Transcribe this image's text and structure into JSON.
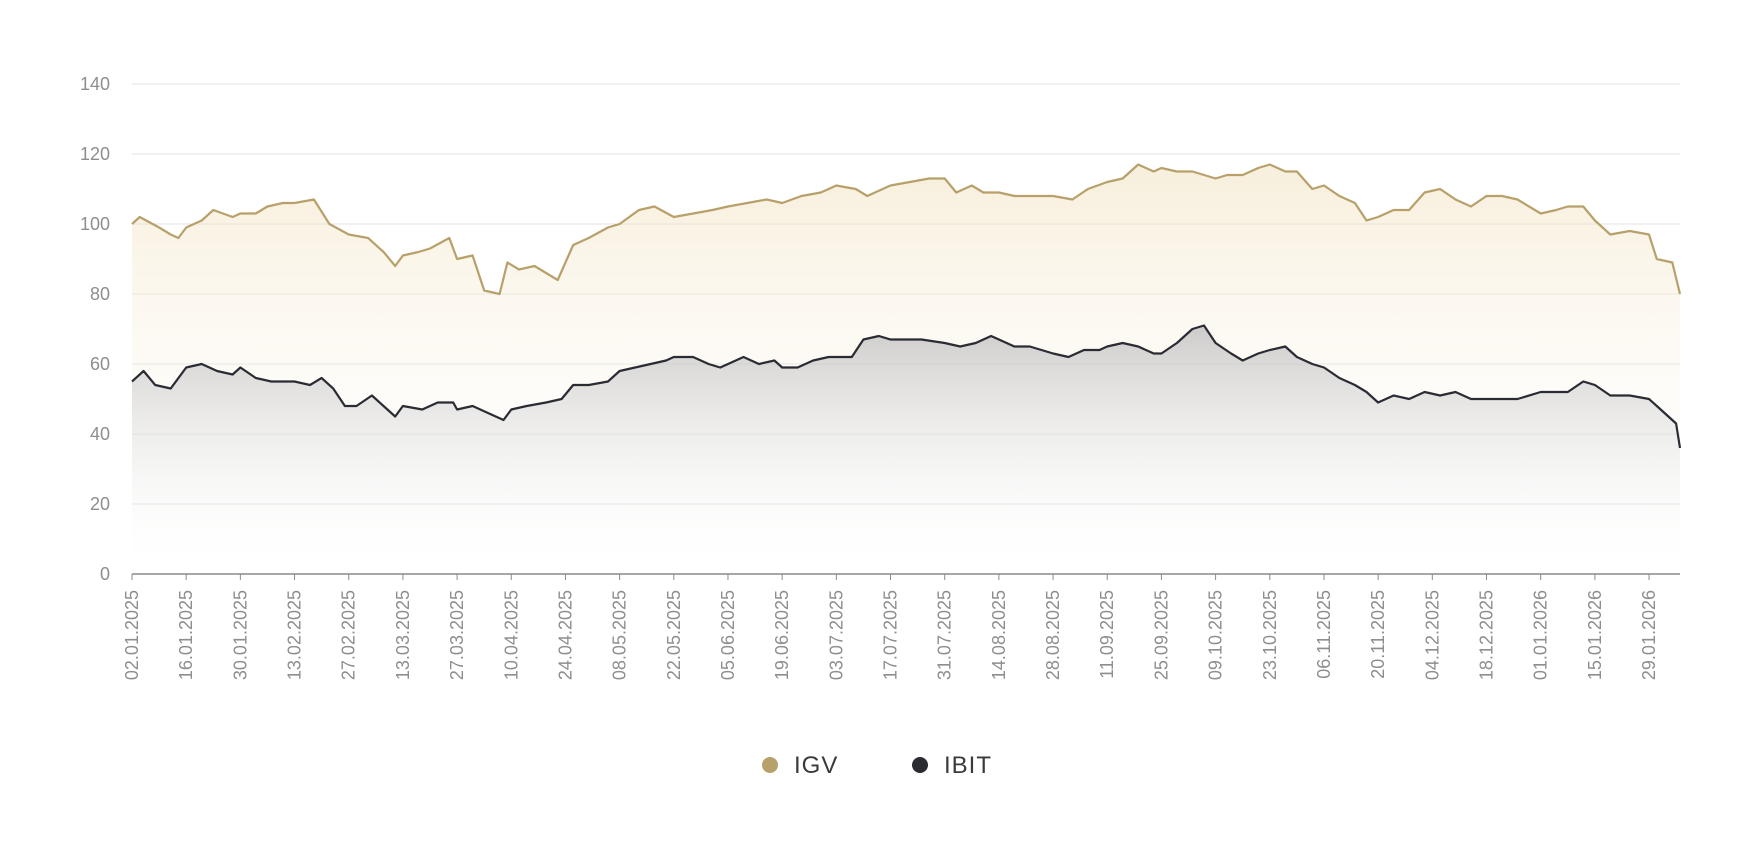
{
  "chart_data": {
    "type": "area",
    "title": "",
    "xlabel": "",
    "ylabel": "",
    "ylim": [
      0,
      140
    ],
    "yticks": [
      0,
      20,
      40,
      60,
      80,
      100,
      120,
      140
    ],
    "grid": "horizontal",
    "legend_position": "bottom-center",
    "x_tick_labels": [
      "02.01.2025",
      "16.01.2025",
      "30.01.2025",
      "13.02.2025",
      "27.02.2025",
      "13.03.2025",
      "27.03.2025",
      "10.04.2025",
      "24.04.2025",
      "08.05.2025",
      "22.05.2025",
      "05.06.2025",
      "19.06.2025",
      "03.07.2025",
      "17.07.2025",
      "31.07.2025",
      "14.08.2025",
      "28.08.2025",
      "11.09.2025",
      "25.09.2025",
      "09.10.2025",
      "23.10.2025",
      "06.11.2025",
      "20.11.2025",
      "04.12.2025",
      "18.12.2025",
      "01.01.2026",
      "15.01.2026",
      "29.01.2026"
    ],
    "x_start": "02.01.2025",
    "x_end": "06.02.2026",
    "series": [
      {
        "name": "IGV",
        "color": "#b8a06a",
        "points": [
          [
            "02.01.2025",
            100
          ],
          [
            "04.01.2025",
            102
          ],
          [
            "09.01.2025",
            99
          ],
          [
            "12.01.2025",
            97
          ],
          [
            "14.01.2025",
            96
          ],
          [
            "16.01.2025",
            99
          ],
          [
            "20.01.2025",
            101
          ],
          [
            "23.01.2025",
            104
          ],
          [
            "28.01.2025",
            102
          ],
          [
            "30.01.2025",
            103
          ],
          [
            "03.02.2025",
            103
          ],
          [
            "06.02.2025",
            105
          ],
          [
            "10.02.2025",
            106
          ],
          [
            "13.02.2025",
            106
          ],
          [
            "18.02.2025",
            107
          ],
          [
            "22.02.2025",
            100
          ],
          [
            "27.02.2025",
            97
          ],
          [
            "04.03.2025",
            96
          ],
          [
            "08.03.2025",
            92
          ],
          [
            "11.03.2025",
            88
          ],
          [
            "13.03.2025",
            91
          ],
          [
            "17.03.2025",
            92
          ],
          [
            "20.03.2025",
            93
          ],
          [
            "25.03.2025",
            96
          ],
          [
            "27.03.2025",
            90
          ],
          [
            "31.03.2025",
            91
          ],
          [
            "03.04.2025",
            81
          ],
          [
            "07.04.2025",
            80
          ],
          [
            "09.04.2025",
            89
          ],
          [
            "12.04.2025",
            87
          ],
          [
            "16.04.2025",
            88
          ],
          [
            "22.04.2025",
            84
          ],
          [
            "26.04.2025",
            94
          ],
          [
            "30.04.2025",
            96
          ],
          [
            "05.05.2025",
            99
          ],
          [
            "08.05.2025",
            100
          ],
          [
            "13.05.2025",
            104
          ],
          [
            "17.05.2025",
            105
          ],
          [
            "22.05.2025",
            102
          ],
          [
            "27.05.2025",
            103
          ],
          [
            "01.06.2025",
            104
          ],
          [
            "05.06.2025",
            105
          ],
          [
            "10.06.2025",
            106
          ],
          [
            "15.06.2025",
            107
          ],
          [
            "19.06.2025",
            106
          ],
          [
            "24.06.2025",
            108
          ],
          [
            "29.06.2025",
            109
          ],
          [
            "03.07.2025",
            111
          ],
          [
            "08.07.2025",
            110
          ],
          [
            "11.07.2025",
            108
          ],
          [
            "17.07.2025",
            111
          ],
          [
            "22.07.2025",
            112
          ],
          [
            "27.07.2025",
            113
          ],
          [
            "31.07.2025",
            113
          ],
          [
            "03.08.2025",
            109
          ],
          [
            "07.08.2025",
            111
          ],
          [
            "10.08.2025",
            109
          ],
          [
            "14.08.2025",
            109
          ],
          [
            "18.08.2025",
            108
          ],
          [
            "22.08.2025",
            108
          ],
          [
            "28.08.2025",
            108
          ],
          [
            "02.09.2025",
            107
          ],
          [
            "06.09.2025",
            110
          ],
          [
            "11.09.2025",
            112
          ],
          [
            "15.09.2025",
            113
          ],
          [
            "19.09.2025",
            117
          ],
          [
            "23.09.2025",
            115
          ],
          [
            "25.09.2025",
            116
          ],
          [
            "29.09.2025",
            115
          ],
          [
            "03.10.2025",
            115
          ],
          [
            "06.10.2025",
            114
          ],
          [
            "09.10.2025",
            113
          ],
          [
            "12.10.2025",
            114
          ],
          [
            "16.10.2025",
            114
          ],
          [
            "20.10.2025",
            116
          ],
          [
            "23.10.2025",
            117
          ],
          [
            "27.10.2025",
            115
          ],
          [
            "30.10.2025",
            115
          ],
          [
            "03.11.2025",
            110
          ],
          [
            "06.11.2025",
            111
          ],
          [
            "10.11.2025",
            108
          ],
          [
            "14.11.2025",
            106
          ],
          [
            "17.11.2025",
            101
          ],
          [
            "20.11.2025",
            102
          ],
          [
            "24.11.2025",
            104
          ],
          [
            "28.11.2025",
            104
          ],
          [
            "02.12.2025",
            109
          ],
          [
            "06.12.2025",
            110
          ],
          [
            "10.12.2025",
            107
          ],
          [
            "14.12.2025",
            105
          ],
          [
            "18.12.2025",
            108
          ],
          [
            "22.12.2025",
            108
          ],
          [
            "26.12.2025",
            107
          ],
          [
            "01.01.2026",
            103
          ],
          [
            "05.01.2026",
            104
          ],
          [
            "08.01.2026",
            105
          ],
          [
            "12.01.2026",
            105
          ],
          [
            "15.01.2026",
            101
          ],
          [
            "19.01.2026",
            97
          ],
          [
            "24.01.2026",
            98
          ],
          [
            "29.01.2026",
            97
          ],
          [
            "31.01.2026",
            90
          ],
          [
            "04.02.2026",
            89
          ],
          [
            "06.02.2026",
            80
          ]
        ]
      },
      {
        "name": "IBIT",
        "color": "#2b2b33",
        "points": [
          [
            "02.01.2025",
            55
          ],
          [
            "05.01.2025",
            58
          ],
          [
            "08.01.2025",
            54
          ],
          [
            "12.01.2025",
            53
          ],
          [
            "16.01.2025",
            59
          ],
          [
            "20.01.2025",
            60
          ],
          [
            "24.01.2025",
            58
          ],
          [
            "28.01.2025",
            57
          ],
          [
            "30.01.2025",
            59
          ],
          [
            "03.02.2025",
            56
          ],
          [
            "07.02.2025",
            55
          ],
          [
            "11.02.2025",
            55
          ],
          [
            "13.02.2025",
            55
          ],
          [
            "17.02.2025",
            54
          ],
          [
            "20.02.2025",
            56
          ],
          [
            "23.02.2025",
            53
          ],
          [
            "26.02.2025",
            48
          ],
          [
            "01.03.2025",
            48
          ],
          [
            "05.03.2025",
            51
          ],
          [
            "09.03.2025",
            47
          ],
          [
            "11.03.2025",
            45
          ],
          [
            "13.03.2025",
            48
          ],
          [
            "18.03.2025",
            47
          ],
          [
            "22.03.2025",
            49
          ],
          [
            "26.03.2025",
            49
          ],
          [
            "27.03.2025",
            47
          ],
          [
            "31.03.2025",
            48
          ],
          [
            "04.04.2025",
            46
          ],
          [
            "08.04.2025",
            44
          ],
          [
            "10.04.2025",
            47
          ],
          [
            "14.04.2025",
            48
          ],
          [
            "19.04.2025",
            49
          ],
          [
            "23.04.2025",
            50
          ],
          [
            "26.04.2025",
            54
          ],
          [
            "30.04.2025",
            54
          ],
          [
            "05.05.2025",
            55
          ],
          [
            "08.05.2025",
            58
          ],
          [
            "12.05.2025",
            59
          ],
          [
            "16.05.2025",
            60
          ],
          [
            "20.05.2025",
            61
          ],
          [
            "22.05.2025",
            62
          ],
          [
            "27.05.2025",
            62
          ],
          [
            "31.05.2025",
            60
          ],
          [
            "03.06.2025",
            59
          ],
          [
            "05.06.2025",
            60
          ],
          [
            "09.06.2025",
            62
          ],
          [
            "13.06.2025",
            60
          ],
          [
            "17.06.2025",
            61
          ],
          [
            "19.06.2025",
            59
          ],
          [
            "23.06.2025",
            59
          ],
          [
            "27.06.2025",
            61
          ],
          [
            "01.07.2025",
            62
          ],
          [
            "03.07.2025",
            62
          ],
          [
            "07.07.2025",
            62
          ],
          [
            "10.07.2025",
            67
          ],
          [
            "14.07.2025",
            68
          ],
          [
            "17.07.2025",
            67
          ],
          [
            "21.07.2025",
            67
          ],
          [
            "25.07.2025",
            67
          ],
          [
            "31.07.2025",
            66
          ],
          [
            "04.08.2025",
            65
          ],
          [
            "08.08.2025",
            66
          ],
          [
            "12.08.2025",
            68
          ],
          [
            "14.08.2025",
            67
          ],
          [
            "18.08.2025",
            65
          ],
          [
            "22.08.2025",
            65
          ],
          [
            "28.08.2025",
            63
          ],
          [
            "01.09.2025",
            62
          ],
          [
            "05.09.2025",
            64
          ],
          [
            "09.09.2025",
            64
          ],
          [
            "11.09.2025",
            65
          ],
          [
            "15.09.2025",
            66
          ],
          [
            "19.09.2025",
            65
          ],
          [
            "23.09.2025",
            63
          ],
          [
            "25.09.2025",
            63
          ],
          [
            "29.09.2025",
            66
          ],
          [
            "03.10.2025",
            70
          ],
          [
            "06.10.2025",
            71
          ],
          [
            "09.10.2025",
            66
          ],
          [
            "13.10.2025",
            63
          ],
          [
            "16.10.2025",
            61
          ],
          [
            "20.10.2025",
            63
          ],
          [
            "23.10.2025",
            64
          ],
          [
            "27.10.2025",
            65
          ],
          [
            "30.10.2025",
            62
          ],
          [
            "03.11.2025",
            60
          ],
          [
            "06.11.2025",
            59
          ],
          [
            "10.11.2025",
            56
          ],
          [
            "14.11.2025",
            54
          ],
          [
            "17.11.2025",
            52
          ],
          [
            "20.11.2025",
            49
          ],
          [
            "24.11.2025",
            51
          ],
          [
            "28.11.2025",
            50
          ],
          [
            "02.12.2025",
            52
          ],
          [
            "06.12.2025",
            51
          ],
          [
            "10.12.2025",
            52
          ],
          [
            "14.12.2025",
            50
          ],
          [
            "18.12.2025",
            50
          ],
          [
            "22.12.2025",
            50
          ],
          [
            "26.12.2025",
            50
          ],
          [
            "01.01.2026",
            52
          ],
          [
            "05.01.2026",
            52
          ],
          [
            "08.01.2026",
            52
          ],
          [
            "12.01.2026",
            55
          ],
          [
            "15.01.2026",
            54
          ],
          [
            "19.01.2026",
            51
          ],
          [
            "24.01.2026",
            51
          ],
          [
            "29.01.2026",
            50
          ],
          [
            "31.01.2026",
            48
          ],
          [
            "03.02.2026",
            45
          ],
          [
            "05.02.2026",
            43
          ],
          [
            "06.02.2026",
            36
          ]
        ]
      }
    ]
  }
}
